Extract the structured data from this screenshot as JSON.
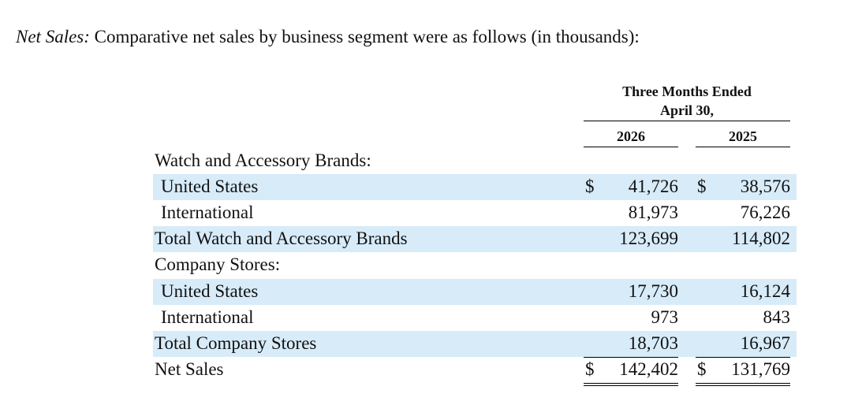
{
  "intro": {
    "lead": "Net Sales:",
    "text": " Comparative net sales by business segment were as follows (in thousands):"
  },
  "header": {
    "period_line1": "Three Months Ended",
    "period_line2": "April 30,",
    "year1": "2026",
    "year2": "2025"
  },
  "rows": [
    {
      "label": "Watch and Accessory Brands:",
      "cur1": "",
      "v1": "",
      "cur2": "",
      "v2": ""
    },
    {
      "label": "United States",
      "cur1": "$",
      "v1": "41,726",
      "cur2": "$",
      "v2": "38,576"
    },
    {
      "label": "International",
      "cur1": "",
      "v1": "81,973",
      "cur2": "",
      "v2": "76,226"
    },
    {
      "label": "Total Watch and Accessory Brands",
      "cur1": "",
      "v1": "123,699",
      "cur2": "",
      "v2": "114,802"
    },
    {
      "label": "Company Stores:",
      "cur1": "",
      "v1": "",
      "cur2": "",
      "v2": ""
    },
    {
      "label": "United States",
      "cur1": "",
      "v1": "17,730",
      "cur2": "",
      "v2": "16,124"
    },
    {
      "label": "International",
      "cur1": "",
      "v1": "973",
      "cur2": "",
      "v2": "843"
    },
    {
      "label": "Total Company Stores",
      "cur1": "",
      "v1": "18,703",
      "cur2": "",
      "v2": "16,967"
    },
    {
      "label": "Net Sales",
      "cur1": "$",
      "v1": "142,402",
      "cur2": "$",
      "v2": "131,769"
    }
  ]
}
